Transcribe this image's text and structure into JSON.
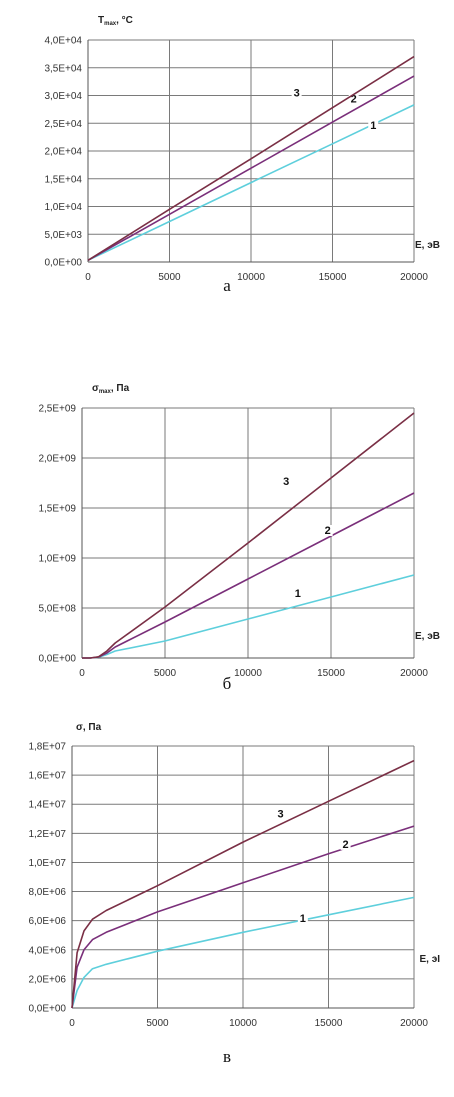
{
  "colors": {
    "series_1": "#5ecfdc",
    "series_2": "#7a2f7a",
    "series_3": "#7a2f45"
  },
  "chart_data": [
    {
      "panel": "a",
      "type": "line",
      "ylabel": "T",
      "ylabel_sub": "max",
      "ylabel_unit": ", °C",
      "xlabel": "E, эВ",
      "caption": "а",
      "xlim": [
        0,
        20000
      ],
      "ylim": [
        0,
        40000
      ],
      "xticks": [
        0,
        5000,
        10000,
        15000,
        20000
      ],
      "xtick_labels": [
        "0",
        "5000",
        "10000",
        "15000",
        "20000"
      ],
      "yticks": [
        0,
        5000,
        10000,
        15000,
        20000,
        25000,
        30000,
        35000,
        40000
      ],
      "ytick_labels": [
        "0,0E+00",
        "5,0E+03",
        "1,0E+04",
        "1,5E+04",
        "2,0E+04",
        "2,5E+04",
        "3,0E+04",
        "3,5E+04",
        "4,0E+04"
      ],
      "grid": true,
      "series": [
        {
          "label": "1",
          "label_at": [
            17500,
            24000
          ],
          "x": [
            0,
            5000,
            10000,
            15000,
            20000
          ],
          "y": [
            300,
            7300,
            14300,
            21300,
            28300
          ]
        },
        {
          "label": "2",
          "label_at": [
            16300,
            28700
          ],
          "x": [
            0,
            5000,
            10000,
            15000,
            20000
          ],
          "y": [
            300,
            8600,
            16900,
            25200,
            33500
          ]
        },
        {
          "label": "3",
          "label_at": [
            12800,
            29800
          ],
          "x": [
            0,
            5000,
            10000,
            15000,
            20000
          ],
          "y": [
            300,
            9500,
            18600,
            27800,
            37000
          ]
        }
      ]
    },
    {
      "panel": "б",
      "type": "line",
      "ylabel": "σ",
      "ylabel_sub": "max",
      "ylabel_unit": ", Па",
      "xlabel": "E, эВ",
      "caption": "б",
      "xlim": [
        0,
        20000
      ],
      "ylim": [
        0,
        2500000000
      ],
      "xticks": [
        0,
        5000,
        10000,
        15000,
        20000
      ],
      "xtick_labels": [
        "0",
        "5000",
        "10000",
        "15000",
        "20000"
      ],
      "yticks": [
        0,
        500000000,
        1000000000,
        1500000000,
        2000000000,
        2500000000
      ],
      "ytick_labels": [
        "0,0E+00",
        "5,0E+08",
        "1,0E+09",
        "1,5E+09",
        "2,0E+09",
        "2,5E+09"
      ],
      "grid": true,
      "series": [
        {
          "label": "1",
          "label_at": [
            13000,
            610000000
          ],
          "x": [
            0,
            500,
            1000,
            1500,
            2000,
            5000,
            10000,
            15000,
            20000
          ],
          "y": [
            0,
            0,
            8000000,
            35000000,
            70000000,
            170000000,
            390000000,
            610000000,
            830000000
          ]
        },
        {
          "label": "2",
          "label_at": [
            14800,
            1240000000
          ],
          "x": [
            0,
            500,
            1000,
            1500,
            2000,
            5000,
            10000,
            15000,
            20000
          ],
          "y": [
            0,
            0,
            10000000,
            50000000,
            110000000,
            360000000,
            790000000,
            1220000000,
            1650000000
          ]
        },
        {
          "label": "3",
          "label_at": [
            12300,
            1730000000
          ],
          "x": [
            0,
            500,
            1000,
            1500,
            2000,
            5000,
            10000,
            15000,
            20000
          ],
          "y": [
            0,
            0,
            12000000,
            70000000,
            150000000,
            510000000,
            1150000000,
            1800000000,
            2450000000
          ]
        }
      ]
    },
    {
      "panel": "в",
      "type": "line",
      "ylabel": "σ",
      "ylabel_sub": "",
      "ylabel_unit": ", Па",
      "xlabel": "E, эI",
      "caption": "в",
      "xlim": [
        0,
        20000
      ],
      "ylim": [
        0,
        18000000
      ],
      "xticks": [
        0,
        5000,
        10000,
        15000,
        20000
      ],
      "xtick_labels": [
        "0",
        "5000",
        "10000",
        "15000",
        "20000"
      ],
      "yticks": [
        0,
        2000000,
        4000000,
        6000000,
        8000000,
        10000000,
        12000000,
        14000000,
        16000000,
        18000000
      ],
      "ytick_labels": [
        "0,0E+00",
        "2,0E+06",
        "4,0E+06",
        "6,0E+06",
        "8,0E+06",
        "1,0E+07",
        "1,2E+07",
        "1,4E+07",
        "1,6E+07",
        "1,8E+07"
      ],
      "grid": true,
      "series": [
        {
          "label": "1",
          "label_at": [
            13500,
            5900000
          ],
          "x": [
            0,
            300,
            700,
            1200,
            2000,
            5000,
            10000,
            15000,
            20000
          ],
          "y": [
            0,
            1200000,
            2100000,
            2700000,
            3000000,
            3900000,
            5200000,
            6400000,
            7600000
          ]
        },
        {
          "label": "2",
          "label_at": [
            16000,
            11000000
          ],
          "x": [
            0,
            300,
            700,
            1200,
            2000,
            5000,
            10000,
            15000,
            20000
          ],
          "y": [
            0,
            2800000,
            4000000,
            4700000,
            5200000,
            6600000,
            8600000,
            10600000,
            12500000
          ]
        },
        {
          "label": "3",
          "label_at": [
            12200,
            13100000
          ],
          "x": [
            0,
            300,
            700,
            1200,
            2000,
            5000,
            10000,
            15000,
            20000
          ],
          "y": [
            0,
            3800000,
            5300000,
            6100000,
            6700000,
            8400000,
            11400000,
            14200000,
            17000000
          ]
        }
      ]
    }
  ]
}
